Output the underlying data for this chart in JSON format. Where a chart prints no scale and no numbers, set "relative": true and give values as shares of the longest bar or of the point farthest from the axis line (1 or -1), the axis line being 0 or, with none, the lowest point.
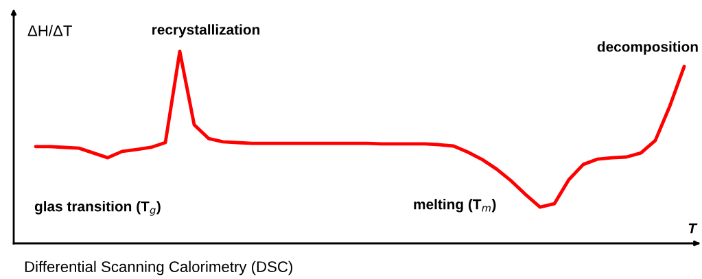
{
  "chart_data": {
    "type": "line",
    "relative": true,
    "xlabel": "T",
    "ylabel": "ΔH/ΔT",
    "categories": [
      null,
      null,
      null,
      null,
      null,
      null,
      null,
      null,
      null,
      null,
      null,
      null,
      null,
      null,
      null,
      null,
      null,
      null,
      null,
      null,
      null,
      null,
      null,
      null,
      null,
      null,
      null,
      null,
      null,
      null,
      null,
      null,
      null,
      null,
      null,
      null,
      null,
      null,
      null,
      null,
      null,
      null,
      null,
      null,
      null,
      null
    ],
    "series": [
      {
        "color": "#ff0000",
        "values": [
          0.504,
          0.504,
          0.5,
          0.496,
          0.471,
          0.446,
          0.479,
          0.489,
          0.5,
          0.525,
          1,
          0.618,
          0.546,
          0.529,
          0.525,
          0.521,
          0.521,
          0.521,
          0.521,
          0.521,
          0.521,
          0.521,
          0.521,
          0.521,
          0.518,
          0.518,
          0.518,
          0.518,
          0.514,
          0.507,
          0.475,
          0.436,
          0.386,
          0.325,
          0.254,
          0.189,
          0.207,
          0.332,
          0.411,
          0.439,
          0.446,
          0.45,
          0.471,
          0.536,
          0.714,
          0.921
        ]
      }
    ],
    "line_style": "solid",
    "marker": "none",
    "grid": false,
    "legend": false,
    "annotations": [
      "recrystallization",
      "decomposition",
      "glas transition (T$_{g}$)",
      "melting (T$_{m}$)",
      "Differential Scanning Calorimetry (DSC)"
    ]
  }
}
